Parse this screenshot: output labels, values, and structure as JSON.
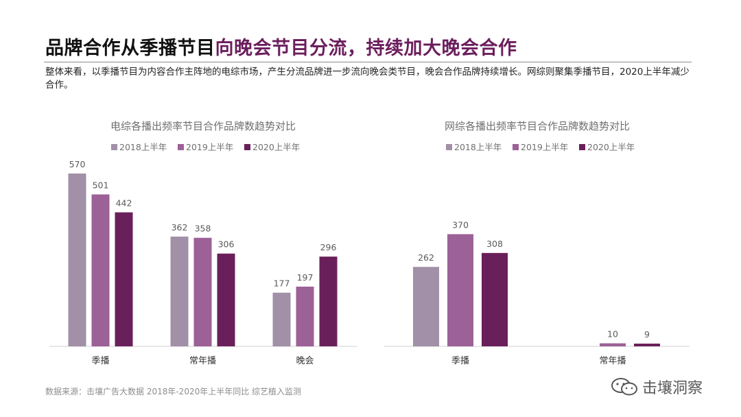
{
  "title": {
    "part1": "品牌合作从季播节目",
    "part2": "向晚会节目分流，持续加大晚会合作"
  },
  "subtitle": "整体来看，以季播节目为内容合作主阵地的电综市场，产生分流品牌进一步流向晚会类节目，晚会合作品牌持续增长。网综则聚集季播节目，2020上半年减少合作。",
  "source": "数据来源：击壤广告大数据 2018年-2020年上半年同比 综艺植入监测",
  "watermark": {
    "text": "击壤洞察",
    "icon": "wechat-icon"
  },
  "colors": {
    "s2018": "#a190a8",
    "s2019": "#9c6197",
    "s2020": "#69205a",
    "title_accent": "#6b1e5c"
  },
  "chart_data": [
    {
      "type": "bar",
      "title": "电综各播出频率节目合作品牌数趋势对比",
      "categories": [
        "季播",
        "常年播",
        "晚会"
      ],
      "series": [
        {
          "name": "2018上半年",
          "values": [
            570,
            362,
            177
          ]
        },
        {
          "name": "2019上半年",
          "values": [
            501,
            358,
            197
          ]
        },
        {
          "name": "2020上半年",
          "values": [
            442,
            306,
            296
          ]
        }
      ],
      "legend": "top",
      "grid": false
    },
    {
      "type": "bar",
      "title": "网综各播出频率节目合作品牌数趋势对比",
      "categories": [
        "季播",
        "常年播"
      ],
      "series": [
        {
          "name": "2018上半年",
          "values": [
            262,
            null
          ]
        },
        {
          "name": "2019上半年",
          "values": [
            370,
            10
          ]
        },
        {
          "name": "2020上半年",
          "values": [
            308,
            9
          ]
        }
      ],
      "legend": "top",
      "grid": false
    }
  ]
}
